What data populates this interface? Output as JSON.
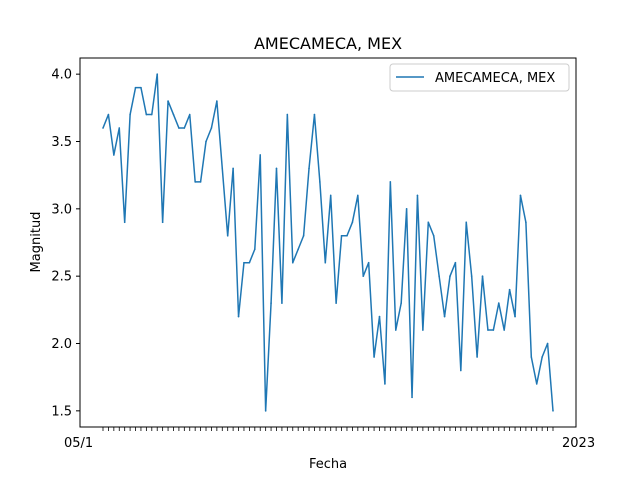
{
  "chart_data": {
    "type": "line",
    "title": "AMECAMECA, MEX",
    "xlabel": "Fecha",
    "ylabel": "Magnitud",
    "ylim": [
      1.38,
      4.12
    ],
    "yticks": [
      "1.5",
      "2.0",
      "2.5",
      "3.0",
      "3.5",
      "4.0"
    ],
    "grid": false,
    "legend_position": "top-right",
    "xtick_first_label": "05/1",
    "xtick_last_label": "2023",
    "series": [
      {
        "name": "AMECAMECA, MEX",
        "color": "#1f77b4",
        "values": [
          3.6,
          3.7,
          3.4,
          3.6,
          2.9,
          3.7,
          3.9,
          3.9,
          3.7,
          3.7,
          4.0,
          2.9,
          3.8,
          3.7,
          3.6,
          3.6,
          3.7,
          3.2,
          3.2,
          3.5,
          3.6,
          3.8,
          3.3,
          2.8,
          3.3,
          2.2,
          2.6,
          2.6,
          2.7,
          3.4,
          1.5,
          2.3,
          3.3,
          2.3,
          3.7,
          2.6,
          2.7,
          2.8,
          3.3,
          3.7,
          3.2,
          2.6,
          3.1,
          2.3,
          2.8,
          2.8,
          2.9,
          3.1,
          2.5,
          2.6,
          1.9,
          2.2,
          1.7,
          3.2,
          2.1,
          2.3,
          3.0,
          1.6,
          3.1,
          2.1,
          2.9,
          2.8,
          2.5,
          2.2,
          2.5,
          2.6,
          1.8,
          2.9,
          2.5,
          1.9,
          2.5,
          2.1,
          2.1,
          2.3,
          2.1,
          2.4,
          2.2,
          3.1,
          2.9,
          1.9,
          1.7,
          1.9,
          2.0,
          1.5
        ]
      }
    ]
  },
  "axis_style": {
    "color": "#000000",
    "background": "#ffffff"
  },
  "legend": {
    "border_color": "#cccccc"
  }
}
